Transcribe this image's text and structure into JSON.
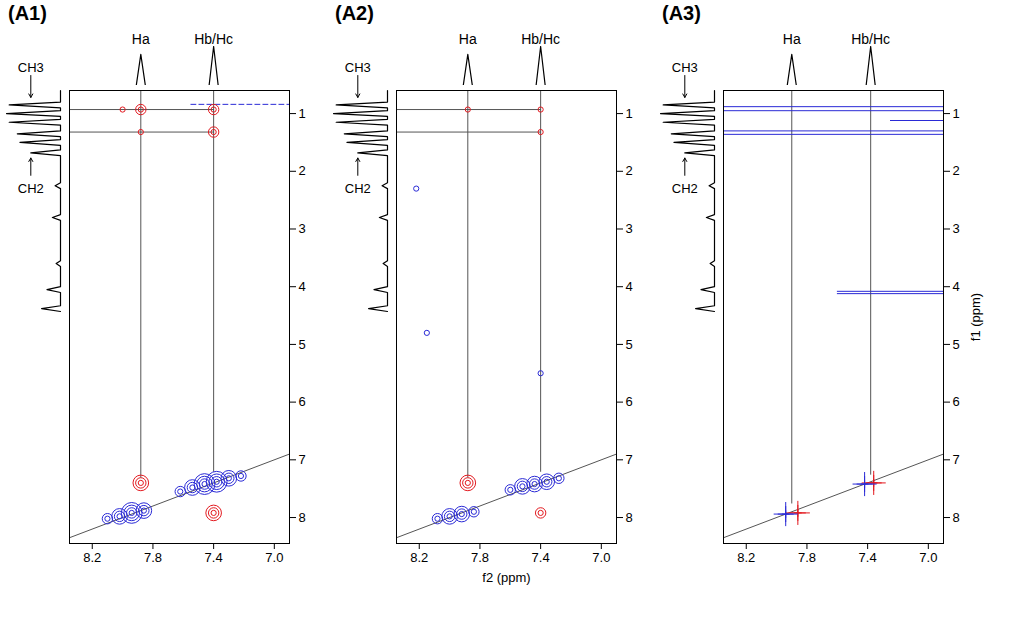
{
  "chart_data": [
    {
      "type": "contour",
      "title": "(A1)",
      "xlim": [
        8.35,
        6.9
      ],
      "xticks": [
        8.2,
        7.8,
        7.4,
        {
          "value": 7,
          "label": "7.0"
        }
      ],
      "ylim": [
        0.6,
        8.45
      ],
      "yticks": [
        1,
        2,
        3,
        4,
        5,
        6,
        7,
        8
      ],
      "projection_f2": {
        "x": [
          7.88,
          7.4
        ],
        "values": [
          0.6,
          0.75
        ],
        "labels": [
          "Ha",
          "Hb/Hc"
        ]
      },
      "projection_f1": {
        "y": [
          0.85,
          1.0,
          1.15,
          1.35,
          1.5,
          1.68,
          2.25,
          2.8,
          3.6,
          4.05,
          4.38
        ],
        "values": [
          0.95,
          1.0,
          0.95,
          0.8,
          0.75,
          0.55,
          0.1,
          0.15,
          0.08,
          0.25,
          0.35
        ]
      },
      "annotations": [
        {
          "text": "CH3",
          "y": 0.93
        },
        {
          "text": "CH2",
          "y": 1.45
        }
      ],
      "series": [
        {
          "type": "line",
          "color": "#555555",
          "line_style": "solid",
          "x": [
            8.35,
            6.9
          ],
          "y": [
            8.35,
            6.9
          ]
        },
        {
          "type": "line",
          "color": "#555555",
          "line_style": "solid",
          "x": [
            7.88,
            7.88
          ],
          "y": [
            0.6,
            7.3
          ]
        },
        {
          "type": "line",
          "color": "#555555",
          "line_style": "solid",
          "x": [
            7.4,
            7.4
          ],
          "y": [
            0.6,
            7.2
          ]
        },
        {
          "type": "line",
          "color": "#555555",
          "line_style": "solid",
          "x": [
            8.35,
            7.4
          ],
          "y": [
            0.93,
            0.93
          ]
        },
        {
          "type": "line",
          "color": "#555555",
          "line_style": "solid",
          "x": [
            8.35,
            7.4
          ],
          "y": [
            1.32,
            1.32
          ]
        },
        {
          "type": "line",
          "color": "#2a2ad6",
          "line_style": "dashed",
          "x": [
            7.55,
            6.9
          ],
          "y": [
            0.84,
            0.84
          ]
        },
        {
          "type": "scatter",
          "marker": "circle",
          "color": "#e3191f",
          "x": [
            8.0,
            7.88,
            7.88,
            7.4,
            7.4,
            7.88,
            7.4
          ],
          "y": [
            0.93,
            0.93,
            1.32,
            0.93,
            1.32,
            7.4,
            7.92
          ],
          "levels": [
            1,
            2,
            1,
            2,
            2,
            3,
            3
          ]
        },
        {
          "type": "scatter",
          "marker": "circle",
          "color": "#2a2ad6",
          "x": [
            8.1,
            8.02,
            7.94,
            7.86,
            7.62,
            7.54,
            7.46,
            7.38,
            7.3,
            7.22
          ],
          "y": [
            8.02,
            7.98,
            7.92,
            7.88,
            7.55,
            7.48,
            7.42,
            7.38,
            7.32,
            7.28
          ],
          "levels": [
            2,
            3,
            4,
            3,
            2,
            3,
            4,
            4,
            3,
            2
          ]
        }
      ]
    },
    {
      "type": "contour",
      "title": "(A2)",
      "x_label": "f2 (ppm)",
      "xlim": [
        8.35,
        6.9
      ],
      "xticks": [
        8.2,
        7.8,
        7.4,
        {
          "value": 7,
          "label": "7.0"
        }
      ],
      "ylim": [
        0.6,
        8.45
      ],
      "yticks": [
        1,
        2,
        3,
        4,
        5,
        6,
        7,
        8
      ],
      "projection_f2": {
        "x": [
          7.88,
          7.4
        ],
        "values": [
          0.6,
          0.75
        ],
        "labels": [
          "Ha",
          "Hb/Hc"
        ]
      },
      "projection_f1": {
        "y": [
          0.85,
          1.0,
          1.15,
          1.35,
          1.5,
          1.68,
          2.25,
          2.8,
          3.6,
          4.05,
          4.38
        ],
        "values": [
          0.95,
          1.0,
          0.95,
          0.8,
          0.75,
          0.55,
          0.1,
          0.15,
          0.08,
          0.25,
          0.35
        ]
      },
      "annotations": [
        {
          "text": "CH3",
          "y": 0.93
        },
        {
          "text": "CH2",
          "y": 1.45
        }
      ],
      "series": [
        {
          "type": "line",
          "color": "#555555",
          "line_style": "solid",
          "x": [
            8.35,
            6.9
          ],
          "y": [
            8.35,
            6.9
          ]
        },
        {
          "type": "line",
          "color": "#555555",
          "line_style": "solid",
          "x": [
            7.88,
            7.88
          ],
          "y": [
            0.6,
            7.3
          ]
        },
        {
          "type": "line",
          "color": "#555555",
          "line_style": "solid",
          "x": [
            7.4,
            7.4
          ],
          "y": [
            0.6,
            7.2
          ]
        },
        {
          "type": "line",
          "color": "#555555",
          "line_style": "solid",
          "x": [
            8.35,
            7.4
          ],
          "y": [
            0.93,
            0.93
          ]
        },
        {
          "type": "line",
          "color": "#555555",
          "line_style": "solid",
          "x": [
            8.35,
            7.4
          ],
          "y": [
            1.32,
            1.32
          ]
        },
        {
          "type": "scatter",
          "marker": "circle",
          "color": "#e3191f",
          "x": [
            7.88,
            7.4,
            7.4,
            7.88,
            7.4
          ],
          "y": [
            0.93,
            0.93,
            1.32,
            7.4,
            7.92
          ],
          "levels": [
            1,
            1,
            1,
            3,
            2
          ]
        },
        {
          "type": "scatter",
          "marker": "circle",
          "color": "#2a2ad6",
          "x": [
            8.08,
            8.0,
            7.92,
            7.84,
            7.6,
            7.52,
            7.44,
            7.36,
            7.28,
            8.22,
            8.15,
            7.4
          ],
          "y": [
            8.02,
            7.98,
            7.94,
            7.9,
            7.52,
            7.46,
            7.42,
            7.38,
            7.32,
            2.3,
            4.8,
            5.5
          ],
          "levels": [
            2,
            3,
            3,
            2,
            2,
            3,
            3,
            3,
            2,
            1,
            1,
            1
          ]
        }
      ]
    },
    {
      "type": "contour",
      "title": "(A3)",
      "y_label": "f1 (ppm)",
      "xlim": [
        8.35,
        6.9
      ],
      "xticks": [
        8.2,
        7.8,
        7.4,
        {
          "value": 7,
          "label": "7.0"
        }
      ],
      "ylim": [
        0.6,
        8.45
      ],
      "yticks": [
        1,
        2,
        3,
        4,
        5,
        6,
        7,
        8
      ],
      "projection_f2": {
        "x": [
          7.9,
          7.38
        ],
        "values": [
          0.6,
          0.75
        ],
        "labels": [
          "Ha",
          "Hb/Hc"
        ]
      },
      "projection_f1": {
        "y": [
          0.85,
          1.0,
          1.15,
          1.35,
          1.5,
          1.68,
          2.25,
          2.8,
          3.6,
          4.05,
          4.38
        ],
        "values": [
          0.95,
          1.0,
          0.95,
          0.8,
          0.75,
          0.55,
          0.1,
          0.15,
          0.08,
          0.25,
          0.35
        ]
      },
      "annotations": [
        {
          "text": "CH3",
          "y": 0.93
        },
        {
          "text": "CH2",
          "y": 1.45
        }
      ],
      "series": [
        {
          "type": "line",
          "color": "#555555",
          "line_style": "solid",
          "x": [
            8.35,
            6.9
          ],
          "y": [
            8.35,
            6.9
          ]
        },
        {
          "type": "line",
          "color": "#555555",
          "line_style": "solid",
          "x": [
            7.9,
            7.9
          ],
          "y": [
            0.6,
            7.75
          ]
        },
        {
          "type": "line",
          "color": "#555555",
          "line_style": "solid",
          "x": [
            7.38,
            7.38
          ],
          "y": [
            0.6,
            7.25
          ]
        },
        {
          "type": "line",
          "color": "#2a2ad6",
          "line_style": "solid",
          "x": [
            8.35,
            6.9
          ],
          "y": [
            0.88,
            0.88
          ]
        },
        {
          "type": "line",
          "color": "#2a2ad6",
          "line_style": "solid",
          "x": [
            8.35,
            6.9
          ],
          "y": [
            0.95,
            0.95
          ]
        },
        {
          "type": "line",
          "color": "#2a2ad6",
          "line_style": "solid",
          "x": [
            7.25,
            6.9
          ],
          "y": [
            1.12,
            1.12
          ]
        },
        {
          "type": "line",
          "color": "#2a2ad6",
          "line_style": "solid",
          "x": [
            8.35,
            6.9
          ],
          "y": [
            1.3,
            1.3
          ]
        },
        {
          "type": "line",
          "color": "#2a2ad6",
          "line_style": "solid",
          "x": [
            8.35,
            6.9
          ],
          "y": [
            1.36,
            1.36
          ]
        },
        {
          "type": "line",
          "color": "#2a2ad6",
          "line_style": "solid",
          "x": [
            7.6,
            6.9
          ],
          "y": [
            4.08,
            4.08
          ]
        },
        {
          "type": "line",
          "color": "#2a2ad6",
          "line_style": "solid",
          "x": [
            7.6,
            6.9
          ],
          "y": [
            4.12,
            4.12
          ]
        },
        {
          "type": "scatter",
          "marker": "plus",
          "color": "#e3191f",
          "x": [
            7.86,
            7.36
          ],
          "y": [
            7.92,
            7.4
          ],
          "levels": [
            3,
            3
          ]
        },
        {
          "type": "scatter",
          "marker": "plus",
          "color": "#2a2ad6",
          "x": [
            7.94,
            7.42
          ],
          "y": [
            7.94,
            7.42
          ],
          "levels": [
            3,
            3
          ]
        }
      ]
    }
  ]
}
